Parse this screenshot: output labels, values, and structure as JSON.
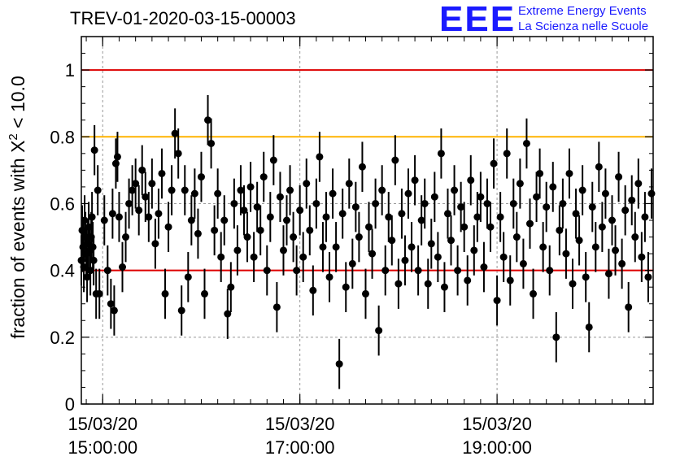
{
  "title": "TREV-01-2020-03-15-00003",
  "logo": {
    "mark": "EEE",
    "line1": "Extreme Energy Events",
    "line2": "La Scienza nelle Scuole"
  },
  "colors": {
    "red_lines": "#dd0000",
    "orange_line": "#ffb300",
    "points": "#000000",
    "grid": "#999999"
  },
  "chart_data": {
    "type": "scatter",
    "title": "TREV-01-2020-03-15-00003",
    "ylabel": "fraction of events with X² < 10.0",
    "xlabel": "",
    "ylim": [
      0,
      1.1
    ],
    "x_ticks": [
      {
        "date": "15/03/20",
        "time": "15:00:00"
      },
      {
        "date": "15/03/20",
        "time": "17:00:00"
      },
      {
        "date": "15/03/20",
        "time": "19:00:00"
      }
    ],
    "y_ticks": [
      "0",
      "0.2",
      "0.4",
      "0.6",
      "0.8",
      "1"
    ],
    "x_range": [
      "15/03/20 14:47:00",
      "15/03/20 20:35:00"
    ],
    "grid": "dashed at tick positions",
    "reference_lines": [
      {
        "y": 1.0,
        "color": "red"
      },
      {
        "y": 0.8,
        "color": "orange"
      },
      {
        "y": 0.4,
        "color": "red"
      }
    ],
    "series": [
      {
        "error_bar_approx": 0.075,
        "points": [
          [
            "14:47:00",
            0.43
          ],
          [
            "14:47:30",
            0.52
          ],
          [
            "14:48:00",
            0.47
          ],
          [
            "14:48:30",
            0.41
          ],
          [
            "14:49:00",
            0.55
          ],
          [
            "14:49:30",
            0.5
          ],
          [
            "14:50:00",
            0.45
          ],
          [
            "14:50:30",
            0.38
          ],
          [
            "14:51:00",
            0.48
          ],
          [
            "14:51:30",
            0.53
          ],
          [
            "14:52:00",
            0.46
          ],
          [
            "14:52:30",
            0.4
          ],
          [
            "14:53:00",
            0.5
          ],
          [
            "14:53:30",
            0.56
          ],
          [
            "14:54:00",
            0.47
          ],
          [
            "14:54:30",
            0.43
          ],
          [
            "14:55:00",
            0.76
          ],
          [
            "14:56:00",
            0.33
          ],
          [
            "14:57:00",
            0.64
          ],
          [
            "14:58:00",
            0.33
          ],
          [
            "15:01:00",
            0.55
          ],
          [
            "15:03:00",
            0.4
          ],
          [
            "15:05:00",
            0.3
          ],
          [
            "15:06:00",
            0.57
          ],
          [
            "15:07:00",
            0.28
          ],
          [
            "15:08:00",
            0.72
          ],
          [
            "15:09:00",
            0.74
          ],
          [
            "15:10:00",
            0.56
          ],
          [
            "15:12:00",
            0.41
          ],
          [
            "15:14:00",
            0.5
          ],
          [
            "15:16:00",
            0.6
          ],
          [
            "15:18:00",
            0.64
          ],
          [
            "15:20:00",
            0.66
          ],
          [
            "15:22:00",
            0.58
          ],
          [
            "15:24:00",
            0.7
          ],
          [
            "15:26:00",
            0.62
          ],
          [
            "15:28:00",
            0.56
          ],
          [
            "15:30:00",
            0.66
          ],
          [
            "15:32:00",
            0.48
          ],
          [
            "15:34:00",
            0.57
          ],
          [
            "15:36:00",
            0.69
          ],
          [
            "15:38:00",
            0.33
          ],
          [
            "15:40:00",
            0.53
          ],
          [
            "15:42:00",
            0.64
          ],
          [
            "15:44:00",
            0.81
          ],
          [
            "15:46:00",
            0.75
          ],
          [
            "15:48:00",
            0.28
          ],
          [
            "15:50:00",
            0.64
          ],
          [
            "15:52:00",
            0.38
          ],
          [
            "15:54:00",
            0.55
          ],
          [
            "15:56:00",
            0.63
          ],
          [
            "15:58:00",
            0.51
          ],
          [
            "16:00:00",
            0.68
          ],
          [
            "16:02:00",
            0.33
          ],
          [
            "16:04:00",
            0.85
          ],
          [
            "16:06:00",
            0.78
          ],
          [
            "16:08:00",
            0.52
          ],
          [
            "16:10:00",
            0.63
          ],
          [
            "16:12:00",
            0.44
          ],
          [
            "16:14:00",
            0.55
          ],
          [
            "16:16:00",
            0.27
          ],
          [
            "16:18:00",
            0.35
          ],
          [
            "16:20:00",
            0.6
          ],
          [
            "16:22:00",
            0.46
          ],
          [
            "16:24:00",
            0.64
          ],
          [
            "16:26:00",
            0.58
          ],
          [
            "16:28:00",
            0.5
          ],
          [
            "16:30:00",
            0.65
          ],
          [
            "16:32:00",
            0.44
          ],
          [
            "16:34:00",
            0.59
          ],
          [
            "16:36:00",
            0.52
          ],
          [
            "16:38:00",
            0.68
          ],
          [
            "16:40:00",
            0.4
          ],
          [
            "16:42:00",
            0.56
          ],
          [
            "16:44:00",
            0.73
          ],
          [
            "16:46:00",
            0.29
          ],
          [
            "16:48:00",
            0.62
          ],
          [
            "16:50:00",
            0.46
          ],
          [
            "16:52:00",
            0.55
          ],
          [
            "16:54:00",
            0.64
          ],
          [
            "16:56:00",
            0.5
          ],
          [
            "16:58:00",
            0.4
          ],
          [
            "17:00:00",
            0.58
          ],
          [
            "17:02:00",
            0.44
          ],
          [
            "17:04:00",
            0.66
          ],
          [
            "17:06:00",
            0.52
          ],
          [
            "17:08:00",
            0.34
          ],
          [
            "17:10:00",
            0.6
          ],
          [
            "17:12:00",
            0.74
          ],
          [
            "17:14:00",
            0.47
          ],
          [
            "17:16:00",
            0.56
          ],
          [
            "17:18:00",
            0.38
          ],
          [
            "17:20:00",
            0.63
          ],
          [
            "17:22:00",
            0.47
          ],
          [
            "17:24:00",
            0.12
          ],
          [
            "17:26:00",
            0.57
          ],
          [
            "17:28:00",
            0.35
          ],
          [
            "17:30:00",
            0.66
          ],
          [
            "17:32:00",
            0.42
          ],
          [
            "17:34:00",
            0.59
          ],
          [
            "17:36:00",
            0.5
          ],
          [
            "17:38:00",
            0.71
          ],
          [
            "17:40:00",
            0.33
          ],
          [
            "17:42:00",
            0.53
          ],
          [
            "17:44:00",
            0.45
          ],
          [
            "17:46:00",
            0.6
          ],
          [
            "17:48:00",
            0.22
          ],
          [
            "17:50:00",
            0.64
          ],
          [
            "17:52:00",
            0.4
          ],
          [
            "17:54:00",
            0.56
          ],
          [
            "17:56:00",
            0.49
          ],
          [
            "17:58:00",
            0.73
          ],
          [
            "18:00:00",
            0.36
          ],
          [
            "18:02:00",
            0.57
          ],
          [
            "18:04:00",
            0.43
          ],
          [
            "18:06:00",
            0.63
          ],
          [
            "18:08:00",
            0.47
          ],
          [
            "18:10:00",
            0.67
          ],
          [
            "18:12:00",
            0.4
          ],
          [
            "18:14:00",
            0.55
          ],
          [
            "18:16:00",
            0.6
          ],
          [
            "18:18:00",
            0.36
          ],
          [
            "18:20:00",
            0.48
          ],
          [
            "18:22:00",
            0.62
          ],
          [
            "18:24:00",
            0.44
          ],
          [
            "18:26:00",
            0.75
          ],
          [
            "18:28:00",
            0.35
          ],
          [
            "18:30:00",
            0.57
          ],
          [
            "18:32:00",
            0.49
          ],
          [
            "18:34:00",
            0.64
          ],
          [
            "18:36:00",
            0.4
          ],
          [
            "18:38:00",
            0.59
          ],
          [
            "18:40:00",
            0.53
          ],
          [
            "18:42:00",
            0.37
          ],
          [
            "18:44:00",
            0.67
          ],
          [
            "18:46:00",
            0.46
          ],
          [
            "18:48:00",
            0.56
          ],
          [
            "18:50:00",
            0.62
          ],
          [
            "18:52:00",
            0.41
          ],
          [
            "18:54:00",
            0.6
          ],
          [
            "18:56:00",
            0.53
          ],
          [
            "18:58:00",
            0.72
          ],
          [
            "19:00:00",
            0.31
          ],
          [
            "19:02:00",
            0.56
          ],
          [
            "19:04:00",
            0.44
          ],
          [
            "19:06:00",
            0.75
          ],
          [
            "19:08:00",
            0.37
          ],
          [
            "19:10:00",
            0.6
          ],
          [
            "19:12:00",
            0.5
          ],
          [
            "19:14:00",
            0.66
          ],
          [
            "19:16:00",
            0.42
          ],
          [
            "19:18:00",
            0.78
          ],
          [
            "19:20:00",
            0.54
          ],
          [
            "19:22:00",
            0.33
          ],
          [
            "19:24:00",
            0.62
          ],
          [
            "19:26:00",
            0.69
          ],
          [
            "19:28:00",
            0.47
          ],
          [
            "19:30:00",
            0.59
          ],
          [
            "19:32:00",
            0.4
          ],
          [
            "19:34:00",
            0.65
          ],
          [
            "19:36:00",
            0.2
          ],
          [
            "19:38:00",
            0.52
          ],
          [
            "19:40:00",
            0.6
          ],
          [
            "19:42:00",
            0.45
          ],
          [
            "19:44:00",
            0.69
          ],
          [
            "19:46:00",
            0.36
          ],
          [
            "19:48:00",
            0.57
          ],
          [
            "19:50:00",
            0.49
          ],
          [
            "19:52:00",
            0.64
          ],
          [
            "19:54:00",
            0.38
          ],
          [
            "19:56:00",
            0.23
          ],
          [
            "19:58:00",
            0.59
          ],
          [
            "20:00:00",
            0.47
          ],
          [
            "20:02:00",
            0.71
          ],
          [
            "20:04:00",
            0.53
          ],
          [
            "20:06:00",
            0.63
          ],
          [
            "20:08:00",
            0.39
          ],
          [
            "20:10:00",
            0.55
          ],
          [
            "20:12:00",
            0.46
          ],
          [
            "20:14:00",
            0.68
          ],
          [
            "20:16:00",
            0.42
          ],
          [
            "20:18:00",
            0.58
          ],
          [
            "20:20:00",
            0.29
          ],
          [
            "20:22:00",
            0.61
          ],
          [
            "20:24:00",
            0.5
          ],
          [
            "20:26:00",
            0.66
          ],
          [
            "20:28:00",
            0.44
          ],
          [
            "20:30:00",
            0.56
          ],
          [
            "20:32:00",
            0.38
          ],
          [
            "20:34:00",
            0.63
          ]
        ]
      }
    ]
  }
}
